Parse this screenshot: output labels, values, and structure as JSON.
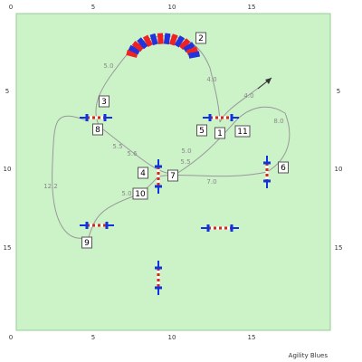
{
  "course": {
    "credit": "Agility Blues",
    "ruler": {
      "top": [
        "0",
        "5",
        "10",
        "15"
      ],
      "bottom": [
        "0",
        "5",
        "10",
        "15"
      ],
      "left": [
        "5",
        "10",
        "15"
      ],
      "right": [
        "5",
        "10",
        "15"
      ]
    },
    "obstacles": [
      "1",
      "2",
      "3",
      "4",
      "5",
      "6",
      "7",
      "8",
      "9",
      "10",
      "11"
    ],
    "distances": [
      "5.0",
      "4.0",
      "4.0",
      "8.0",
      "5.5",
      "5.6",
      "5.0",
      "5.5",
      "7.0",
      "5.0",
      "12.2"
    ]
  }
}
